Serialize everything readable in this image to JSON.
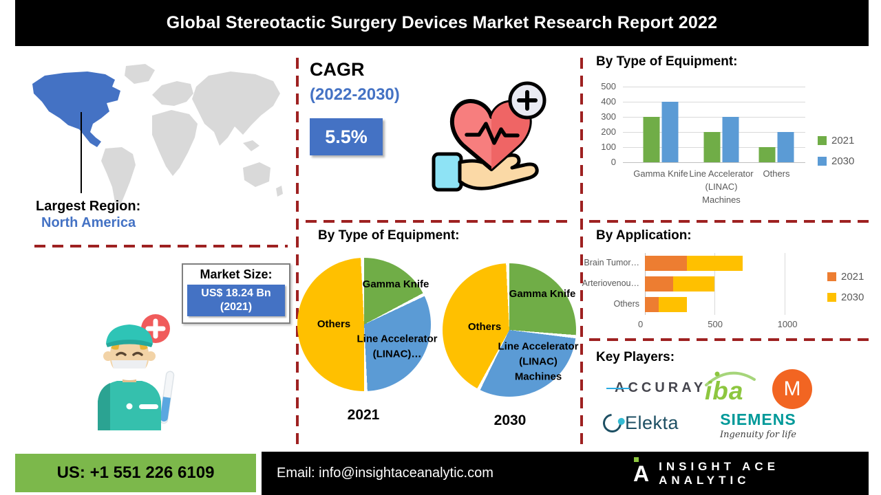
{
  "header": {
    "title": "Global Stereotactic Surgery Devices Market Research Report 2022"
  },
  "left": {
    "largest_region_label": "Largest Region:",
    "largest_region_value": "North America",
    "market_size_label": "Market Size:",
    "market_size_value_line1": "US$ 18.24 Bn",
    "market_size_value_line2": "(2021)"
  },
  "middle": {
    "cagr_label": "CAGR",
    "cagr_period": "(2022-2030)",
    "cagr_value": "5.5%",
    "pie_section_title": "By Type of Equipment:",
    "pie_2021_caption": "2021",
    "pie_2030_caption": "2030"
  },
  "right": {
    "equipment_section_title": "By Type of Equipment:",
    "application_section_title": "By Application:",
    "key_players_title": "Key Players:",
    "key_players": {
      "accuray": "ACCURAY",
      "iba": "iba",
      "mevion": "M",
      "elekta": "Elekta",
      "siemens": "SIEMENS",
      "siemens_tagline": "Ingenuity for life"
    }
  },
  "footer": {
    "phone": "US: +1 551 226 6109",
    "email_label": "Email:",
    "email": "info@insightaceanalytic.com",
    "brand": "INSIGHT ACE ANALYTIC",
    "brand_initial": "A"
  },
  "colors": {
    "accent_blue": "#4472C4",
    "series_green": "#70AD47",
    "series_blue": "#5B9BD5",
    "series_orange": "#ED7D31",
    "series_yellow": "#FFC000",
    "dashed_red": "#9E2121",
    "footer_green": "#7CB84B",
    "map_region_highlight": "#4472C4",
    "map_region_default": "#D9D9D9"
  },
  "chart_data": [
    {
      "id": "equipment_bar",
      "type": "bar",
      "title": "By Type of Equipment:",
      "categories": [
        "Gamma Knife",
        "Line Accelerator (LINAC) Machines",
        "Others"
      ],
      "series": [
        {
          "name": "2021",
          "color": "#70AD47",
          "values": [
            300,
            200,
            100
          ]
        },
        {
          "name": "2030",
          "color": "#5B9BD5",
          "values": [
            400,
            300,
            200
          ]
        }
      ],
      "ylim": [
        0,
        500
      ],
      "yticks": [
        0,
        100,
        200,
        300,
        400,
        500
      ],
      "grid": true,
      "legend_position": "right"
    },
    {
      "id": "pie_2021",
      "type": "pie",
      "title": "2021",
      "slices": [
        {
          "label": "Gamma Knife",
          "value": 18,
          "color": "#70AD47"
        },
        {
          "label": "Line Accelerator (LINAC)…",
          "value": 32,
          "color": "#5B9BD5"
        },
        {
          "label": "Others",
          "value": 50,
          "color": "#FFC000"
        }
      ]
    },
    {
      "id": "pie_2030",
      "type": "pie",
      "title": "2030",
      "slices": [
        {
          "label": "Gamma Knife",
          "value": 27,
          "color": "#70AD47"
        },
        {
          "label": "Line Accelerator (LINAC) Machines",
          "value": 31,
          "color": "#5B9BD5"
        },
        {
          "label": "Others",
          "value": 42,
          "color": "#FFC000"
        }
      ]
    },
    {
      "id": "application_bar",
      "type": "bar",
      "orientation": "horizontal",
      "stacked": true,
      "title": "By Application:",
      "categories": [
        "Brain Tumor…",
        "Arteriovenou…",
        "Others"
      ],
      "series": [
        {
          "name": "2021",
          "color": "#ED7D31",
          "values": [
            300,
            200,
            100
          ]
        },
        {
          "name": "2030",
          "color": "#FFC000",
          "values": [
            400,
            300,
            200
          ]
        }
      ],
      "xlim": [
        0,
        1150
      ],
      "xticks": [
        0,
        500,
        1000
      ],
      "grid": true,
      "legend_position": "right"
    }
  ]
}
